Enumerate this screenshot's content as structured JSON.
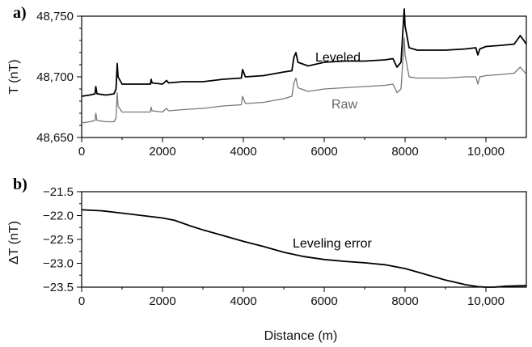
{
  "chart_data": [
    {
      "type": "line",
      "panel_label": "a)",
      "ylabel": "T (nT)",
      "xlabel": "",
      "xlim": [
        0,
        11000
      ],
      "ylim": [
        48650,
        48750
      ],
      "xticks": [
        0,
        2000,
        4000,
        6000,
        8000,
        10000
      ],
      "xtick_labels": [
        "0",
        "2000",
        "4000",
        "6000",
        "8000",
        "10,000"
      ],
      "yticks": [
        48650,
        48700,
        48750
      ],
      "ytick_labels": [
        "48,650",
        "48,700",
        "48,750"
      ],
      "grid": false,
      "series": [
        {
          "name": "Leveled",
          "color": "#000000",
          "points": [
            [
              0,
              48684
            ],
            [
              200,
              48685
            ],
            [
              330,
              48686
            ],
            [
              350,
              48692
            ],
            [
              380,
              48686
            ],
            [
              600,
              48685
            ],
            [
              800,
              48686
            ],
            [
              850,
              48690
            ],
            [
              880,
              48711
            ],
            [
              900,
              48700
            ],
            [
              1000,
              48694
            ],
            [
              1500,
              48694
            ],
            [
              1700,
              48694
            ],
            [
              1720,
              48698
            ],
            [
              1740,
              48695
            ],
            [
              2000,
              48694
            ],
            [
              2100,
              48697
            ],
            [
              2150,
              48695
            ],
            [
              2500,
              48696
            ],
            [
              3000,
              48696
            ],
            [
              3500,
              48698
            ],
            [
              3950,
              48699
            ],
            [
              3980,
              48706
            ],
            [
              4050,
              48700
            ],
            [
              4500,
              48701
            ],
            [
              5000,
              48704
            ],
            [
              5200,
              48705
            ],
            [
              5250,
              48716
            ],
            [
              5300,
              48720
            ],
            [
              5350,
              48712
            ],
            [
              5600,
              48709
            ],
            [
              6000,
              48712
            ],
            [
              6500,
              48713
            ],
            [
              7000,
              48713
            ],
            [
              7500,
              48714
            ],
            [
              7700,
              48715
            ],
            [
              7800,
              48708
            ],
            [
              7900,
              48712
            ],
            [
              7950,
              48740
            ],
            [
              7980,
              48756
            ],
            [
              8000,
              48742
            ],
            [
              8100,
              48724
            ],
            [
              8300,
              48722
            ],
            [
              8800,
              48722
            ],
            [
              9000,
              48722
            ],
            [
              9500,
              48723
            ],
            [
              9750,
              48724
            ],
            [
              9800,
              48718
            ],
            [
              9850,
              48723
            ],
            [
              10000,
              48725
            ],
            [
              10400,
              48726
            ],
            [
              10700,
              48727
            ],
            [
              10850,
              48734
            ],
            [
              11000,
              48727
            ]
          ]
        },
        {
          "name": "Raw",
          "color": "#777777",
          "points": [
            [
              0,
              48662
            ],
            [
              200,
              48663
            ],
            [
              330,
              48664
            ],
            [
              350,
              48670
            ],
            [
              380,
              48664
            ],
            [
              600,
              48663
            ],
            [
              800,
              48663
            ],
            [
              850,
              48666
            ],
            [
              880,
              48687
            ],
            [
              900,
              48676
            ],
            [
              1000,
              48671
            ],
            [
              1500,
              48671
            ],
            [
              1700,
              48671
            ],
            [
              1720,
              48675
            ],
            [
              1740,
              48672
            ],
            [
              2000,
              48671
            ],
            [
              2100,
              48674
            ],
            [
              2150,
              48672
            ],
            [
              2500,
              48673
            ],
            [
              3000,
              48674
            ],
            [
              3500,
              48676
            ],
            [
              3950,
              48677
            ],
            [
              3980,
              48684
            ],
            [
              4050,
              48678
            ],
            [
              4500,
              48679
            ],
            [
              5000,
              48682
            ],
            [
              5200,
              48684
            ],
            [
              5250,
              48695
            ],
            [
              5300,
              48699
            ],
            [
              5350,
              48691
            ],
            [
              5600,
              48688
            ],
            [
              6000,
              48690
            ],
            [
              6500,
              48691
            ],
            [
              7000,
              48692
            ],
            [
              7500,
              48693
            ],
            [
              7700,
              48694
            ],
            [
              7800,
              48687
            ],
            [
              7900,
              48690
            ],
            [
              7950,
              48716
            ],
            [
              7980,
              48732
            ],
            [
              8000,
              48718
            ],
            [
              8100,
              48700
            ],
            [
              8300,
              48699
            ],
            [
              8800,
              48699
            ],
            [
              9000,
              48699
            ],
            [
              9500,
              48700
            ],
            [
              9750,
              48700
            ],
            [
              9800,
              48694
            ],
            [
              9850,
              48700
            ],
            [
              10000,
              48701
            ],
            [
              10400,
              48702
            ],
            [
              10700,
              48703
            ],
            [
              10850,
              48708
            ],
            [
              11000,
              48702
            ]
          ]
        }
      ]
    },
    {
      "type": "line",
      "panel_label": "b)",
      "ylabel": "ΔT (nT)",
      "xlabel": "Distance (m)",
      "xlim": [
        0,
        11000
      ],
      "ylim": [
        -23.5,
        -21.5
      ],
      "xticks": [
        0,
        2000,
        4000,
        6000,
        8000,
        10000
      ],
      "xtick_labels": [
        "0",
        "2000",
        "4000",
        "6000",
        "8000",
        "10,000"
      ],
      "yticks": [
        -21.5,
        -22.0,
        -22.5,
        -23.0,
        -23.5
      ],
      "ytick_labels": [
        "−21.5",
        "−22.0",
        "−22.5",
        "−23.0",
        "−23.5"
      ],
      "grid": false,
      "series": [
        {
          "name": "Leveling error",
          "color": "#000000",
          "points": [
            [
              0,
              -21.88
            ],
            [
              500,
              -21.9
            ],
            [
              1000,
              -21.95
            ],
            [
              1500,
              -22.0
            ],
            [
              2000,
              -22.05
            ],
            [
              2300,
              -22.1
            ],
            [
              2700,
              -22.22
            ],
            [
              3000,
              -22.3
            ],
            [
              3500,
              -22.42
            ],
            [
              4000,
              -22.54
            ],
            [
              4500,
              -22.65
            ],
            [
              5000,
              -22.77
            ],
            [
              5500,
              -22.86
            ],
            [
              6000,
              -22.92
            ],
            [
              6500,
              -22.96
            ],
            [
              7000,
              -22.99
            ],
            [
              7500,
              -23.03
            ],
            [
              8000,
              -23.11
            ],
            [
              8500,
              -23.23
            ],
            [
              9000,
              -23.35
            ],
            [
              9500,
              -23.45
            ],
            [
              9800,
              -23.49
            ],
            [
              10000,
              -23.5
            ],
            [
              10200,
              -23.5
            ],
            [
              10500,
              -23.48
            ],
            [
              11000,
              -23.47
            ]
          ]
        }
      ]
    }
  ]
}
